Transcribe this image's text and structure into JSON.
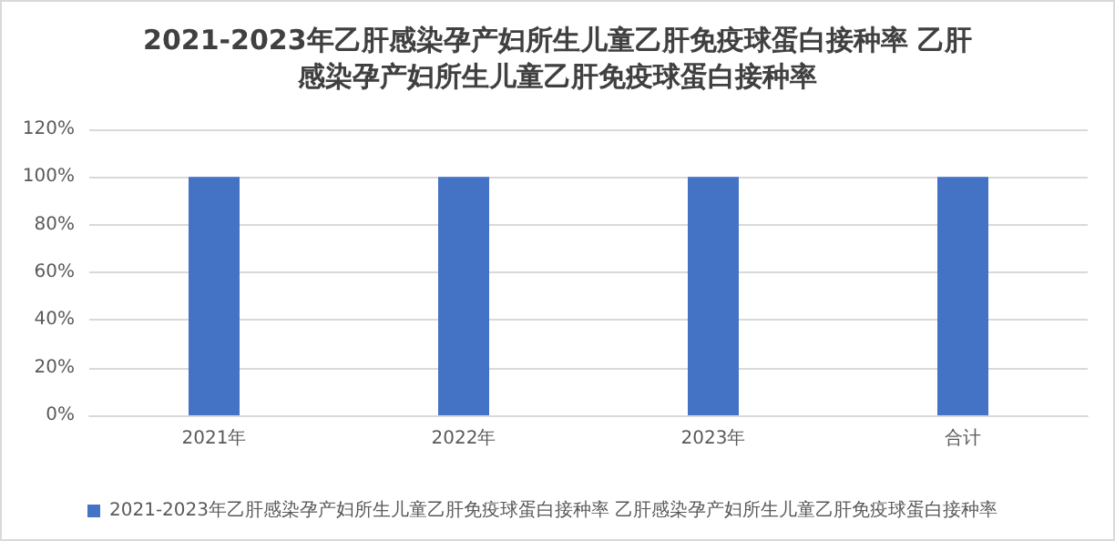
{
  "chart_data": {
    "type": "bar",
    "title": "2021-2023年乙肝感染孕产妇所生儿童乙肝免疫球蛋白接种率 乙肝感染孕产妇所生儿童乙肝免疫球蛋白接种率",
    "categories": [
      "2021年",
      "2022年",
      "2023年",
      "合计"
    ],
    "series": [
      {
        "name": "2021-2023年乙肝感染孕产妇所生儿童乙肝免疫球蛋白接种率 乙肝感染孕产妇所生儿童乙肝免疫球蛋白接种率",
        "color": "#4472c4",
        "values": [
          100,
          100,
          100,
          100
        ]
      }
    ],
    "ylim": [
      0,
      120
    ],
    "yticks": [
      {
        "value": 0,
        "label": "0%"
      },
      {
        "value": 20,
        "label": "20%"
      },
      {
        "value": 40,
        "label": "40%"
      },
      {
        "value": 60,
        "label": "60%"
      },
      {
        "value": 80,
        "label": "80%"
      },
      {
        "value": 100,
        "label": "100%"
      },
      {
        "value": 120,
        "label": "120%"
      }
    ],
    "grid": "y",
    "legend": "bottom"
  }
}
